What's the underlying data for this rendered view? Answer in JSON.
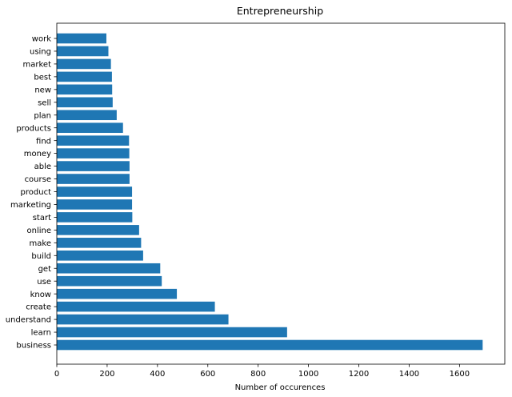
{
  "chart_data": {
    "type": "bar",
    "orientation": "horizontal",
    "title": "Entrepreneurship",
    "xlabel": "Number of occurences",
    "ylabel": "",
    "xlim": [
      0,
      1780
    ],
    "xticks": [
      0,
      200,
      400,
      600,
      800,
      1000,
      1200,
      1400,
      1600
    ],
    "grid": false,
    "bar_color": "#1f77b4",
    "categories": [
      "business",
      "learn",
      "understand",
      "create",
      "know",
      "use",
      "get",
      "build",
      "make",
      "online",
      "start",
      "marketing",
      "product",
      "course",
      "able",
      "money",
      "find",
      "products",
      "plan",
      "sell",
      "new",
      "best",
      "market",
      "using",
      "work"
    ],
    "values": [
      1692,
      915,
      682,
      628,
      477,
      417,
      411,
      343,
      335,
      327,
      300,
      299,
      299,
      289,
      289,
      288,
      287,
      263,
      238,
      222,
      220,
      219,
      215,
      205,
      197
    ]
  }
}
